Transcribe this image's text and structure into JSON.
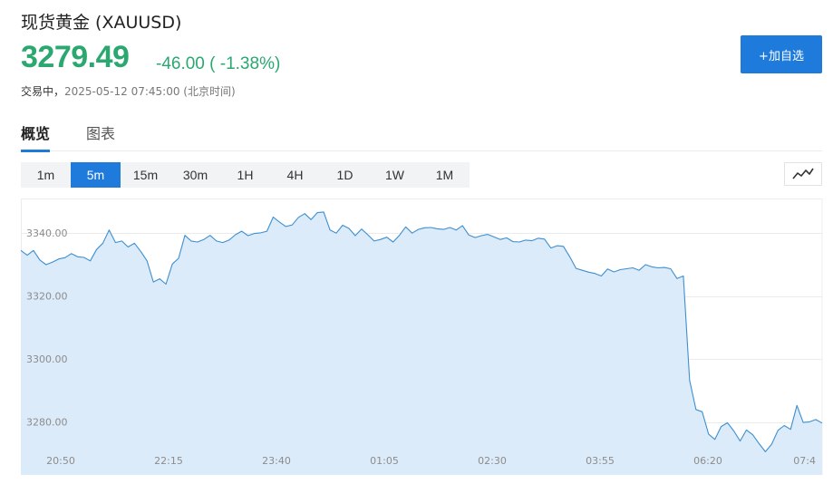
{
  "header": {
    "title": "现货黄金  (XAUUSD)",
    "price": "3279.49",
    "change": "-46.00 ( -1.38%)",
    "status_state": "交易中，",
    "status_time": "2025-05-12 07:45:00",
    "status_zone": "(北京时间)"
  },
  "add_button_label": "+加自选",
  "tabs": [
    {
      "label": "概览",
      "active": true
    },
    {
      "label": "图表",
      "active": false
    }
  ],
  "periods": [
    "1m",
    "5m",
    "15m",
    "30m",
    "1H",
    "4H",
    "1D",
    "1W",
    "1M"
  ],
  "active_period": "5m",
  "chart_type_icon": "line-chart-icon",
  "colors": {
    "up_down": "#2aa86f",
    "accent": "#1e7bdc",
    "line": "#3d8fd0",
    "area": "#dcebfa"
  },
  "chart_data": {
    "type": "area",
    "title": "",
    "xlabel": "",
    "ylabel": "",
    "ylim": [
      3271,
      3351
    ],
    "y_ticks": [
      "3340.00",
      "3320.00",
      "3300.00",
      "3280.00"
    ],
    "x_ticks": [
      "20:50",
      "22:15",
      "23:40",
      "01:05",
      "02:30",
      "03:55",
      "06:20",
      "07:4"
    ],
    "grid": true,
    "series": [
      {
        "values": [
          3334.5,
          3333,
          3334.5,
          3331.5,
          3330,
          3330.8,
          3331.8,
          3332.2,
          3333.5,
          3332.5,
          3332.3,
          3331.2,
          3334.8,
          3336.8,
          3341,
          3337,
          3337.5,
          3335.6,
          3336.8,
          3334.2,
          3331.2,
          3324.5,
          3325.5,
          3323.8,
          3330.2,
          3332,
          3339.3,
          3337.5,
          3337.2,
          3338,
          3339.3,
          3337.5,
          3337,
          3337.8,
          3339.5,
          3340.6,
          3339.2,
          3339.9,
          3340.1,
          3340.6,
          3345.1,
          3343.5,
          3342.1,
          3342.6,
          3345,
          3346.2,
          3344.3,
          3346.5,
          3346.7,
          3341,
          3340,
          3342.5,
          3341.5,
          3339.2,
          3341.3,
          3339.5,
          3337.5,
          3338,
          3338.7,
          3337.2,
          3339.3,
          3342,
          3340,
          3341.2,
          3341.7,
          3341.8,
          3341.4,
          3341.2,
          3341.8,
          3341,
          3342.4,
          3339.4,
          3338.6,
          3339.2,
          3339.6,
          3338.8,
          3338,
          3338.5,
          3337.3,
          3337.2,
          3337.8,
          3337.6,
          3338.4,
          3338.1,
          3335.3,
          3336,
          3335.8,
          3332.5,
          3328.8,
          3328.2,
          3327.6,
          3327.2,
          3326.4,
          3328.6,
          3327.7,
          3328.4,
          3328.7,
          3329,
          3328.2,
          3330,
          3329.3,
          3329,
          3329.1,
          3328.7,
          3325.6,
          3326.4,
          3293.3,
          3284,
          3283.3,
          3276.2,
          3274.5,
          3278.6,
          3279.8,
          3277.2,
          3274,
          3277.5,
          3276,
          3273.2,
          3270.6,
          3273,
          3277.4,
          3278.9,
          3277.7,
          3285.3,
          3279.9,
          3280.1,
          3280.8,
          3279.7
        ]
      }
    ]
  }
}
